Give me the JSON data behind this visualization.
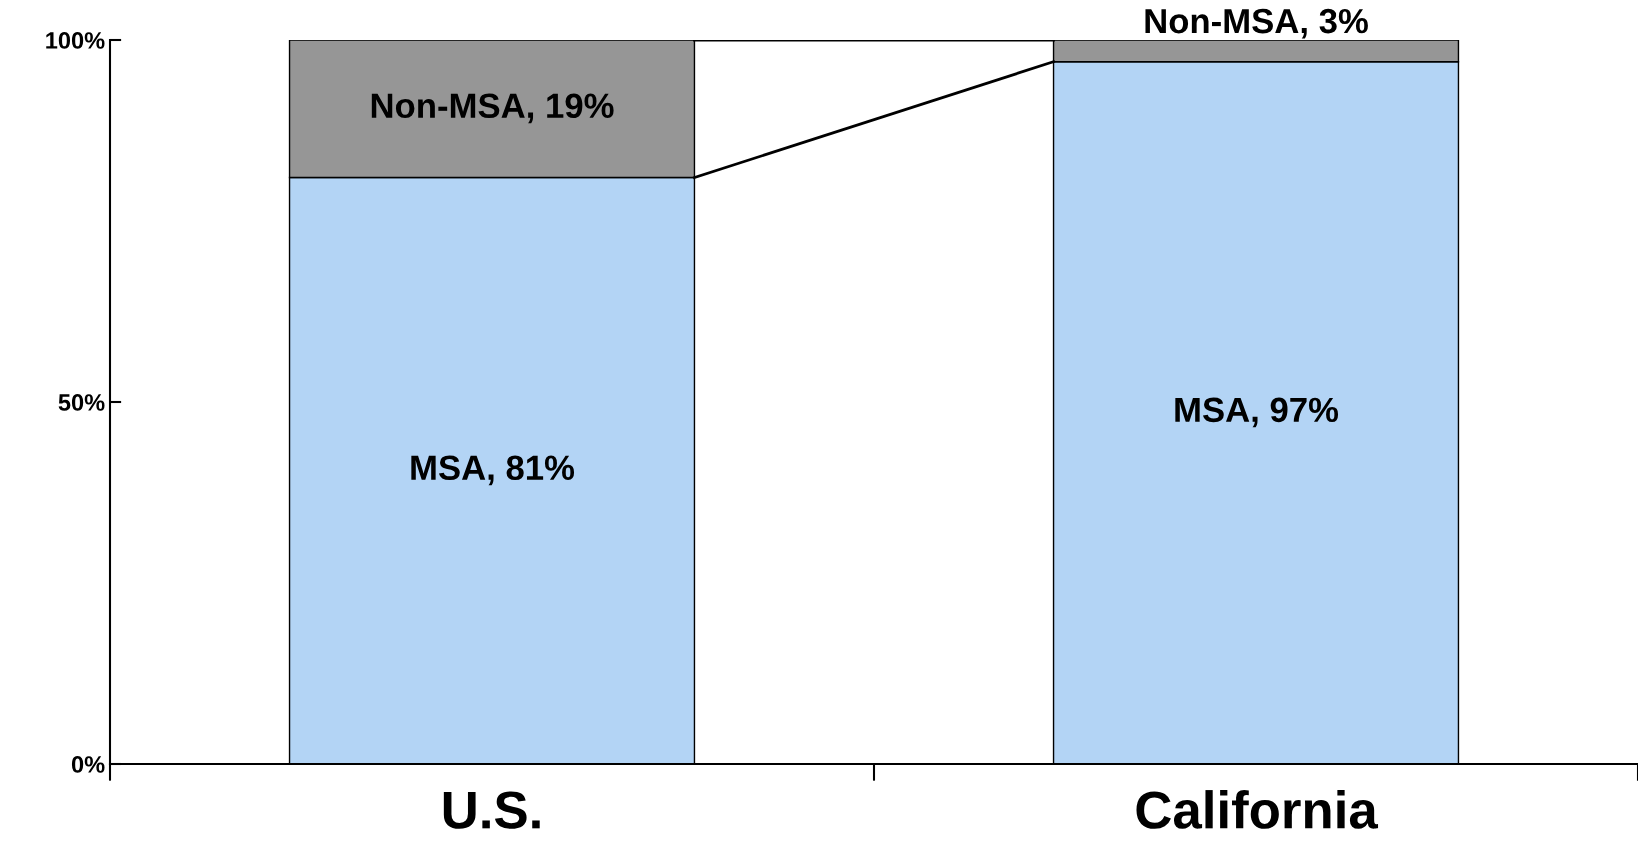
{
  "chart_data": {
    "type": "bar",
    "stacked": true,
    "categories": [
      "U.S.",
      "California"
    ],
    "series": [
      {
        "color": "#b3d4f5",
        "values": [
          81,
          97
        ],
        "value_labels": [
          "MSA, 81%",
          "MSA, 97%"
        ]
      },
      {
        "color": "#969696",
        "values": [
          19,
          3
        ],
        "value_labels": [
          "Non-MSA, 19%",
          "Non-MSA, 3%"
        ]
      }
    ],
    "ylim": [
      0,
      100
    ],
    "yticks": [
      {
        "value": 0,
        "label": "0%"
      },
      {
        "value": 50,
        "label": "50%"
      },
      {
        "value": 100,
        "label": "100%"
      }
    ],
    "grid": false,
    "legend": false
  }
}
